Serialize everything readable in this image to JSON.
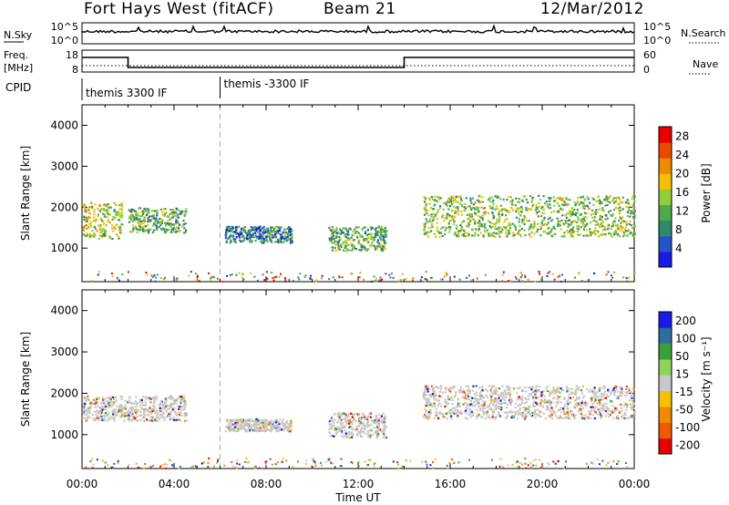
{
  "header": {
    "title": "Fort Hays West (fitACF)",
    "beam": "Beam 21",
    "date": "12/Mar/2012"
  },
  "strip": {
    "nsky_label": "N.Sky",
    "nsearch_label": "N.Search",
    "noise_ticks": [
      "10^5",
      "10^0"
    ],
    "freq_label_1": "Freq.",
    "freq_label_2": "[MHz]",
    "freq_ticks": [
      "18",
      "8"
    ],
    "nave_label": "Nave",
    "nave_ticks": [
      "60",
      "0"
    ],
    "cpid_label": "CPID",
    "cpid_segments": [
      "themis 3300 IF",
      "themis -3300 IF"
    ]
  },
  "colors": {
    "power_scale": [
      "#1a1ae6",
      "#2452c8",
      "#2f8a6a",
      "#4ea84e",
      "#8fcf3a",
      "#f5c000",
      "#f08a00",
      "#e84a00",
      "#e80000"
    ],
    "velocity_scale": [
      "#1a1ae6",
      "#2f6e9a",
      "#3aa03a",
      "#8fd45a",
      "#c8c8c8",
      "#f5c000",
      "#f08a00",
      "#ee5a00",
      "#e80000"
    ]
  },
  "chart_data": [
    {
      "type": "heatmap",
      "panel": "power",
      "ylabel": "Slant Range [km]",
      "xlabel": "",
      "x_ticks": [
        "00:00",
        "04:00",
        "08:00",
        "12:00",
        "16:00",
        "20:00",
        "00:00"
      ],
      "y_ticks": [
        "1000",
        "2000",
        "3000",
        "4000"
      ],
      "ylim": [
        180,
        4500
      ],
      "xlim_hours": [
        0,
        24
      ],
      "colorbar": {
        "label": "Power [dB]",
        "ticks": [
          "4",
          "8",
          "12",
          "16",
          "20",
          "24",
          "28"
        ],
        "range": [
          0,
          30
        ]
      },
      "scatter_regions": [
        {
          "t_start": 0.0,
          "t_end": 1.75,
          "range_center": 1700,
          "range_halfwidth": 450,
          "level": 14
        },
        {
          "t_start": 2.0,
          "t_end": 4.5,
          "range_center": 1700,
          "range_halfwidth": 300,
          "level": 10
        },
        {
          "t_start": 6.2,
          "t_end": 9.1,
          "range_center": 1350,
          "range_halfwidth": 200,
          "level": 6
        },
        {
          "t_start": 10.7,
          "t_end": 13.2,
          "range_center": 1250,
          "range_halfwidth": 300,
          "level": 10
        },
        {
          "t_start": 14.8,
          "t_end": 24.0,
          "range_center": 1800,
          "range_halfwidth": 500,
          "level": 12
        }
      ]
    },
    {
      "type": "heatmap",
      "panel": "velocity",
      "ylabel": "Slant Range [km]",
      "xlabel": "Time UT",
      "x_ticks": [
        "00:00",
        "04:00",
        "08:00",
        "12:00",
        "16:00",
        "20:00",
        "00:00"
      ],
      "y_ticks": [
        "1000",
        "2000",
        "3000",
        "4000"
      ],
      "ylim": [
        180,
        4500
      ],
      "xlim_hours": [
        0,
        24
      ],
      "colorbar": {
        "label": "Velocity [m s⁻¹]",
        "ticks": [
          "200",
          "100",
          "50",
          "15",
          "-15",
          "-50",
          "-100",
          "-200"
        ],
        "range": [
          -250,
          250
        ]
      },
      "scatter_regions": [
        {
          "t_start": 0.0,
          "t_end": 4.5,
          "range_center": 1650,
          "range_halfwidth": 300,
          "velocity": 0
        },
        {
          "t_start": 6.2,
          "t_end": 9.1,
          "range_center": 1250,
          "range_halfwidth": 150,
          "velocity": 40
        },
        {
          "t_start": 10.7,
          "t_end": 13.2,
          "range_center": 1250,
          "range_halfwidth": 300,
          "velocity": 120
        },
        {
          "t_start": 14.8,
          "t_end": 24.0,
          "range_center": 1800,
          "range_halfwidth": 400,
          "velocity": 0
        }
      ]
    }
  ]
}
